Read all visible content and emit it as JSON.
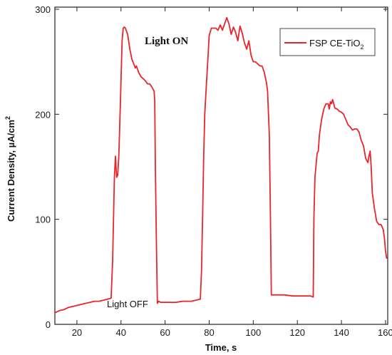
{
  "chart_data": {
    "type": "line",
    "xlabel": "Time, s",
    "ylabel": "Current Density, µA/cm",
    "ylabel_sup": "2",
    "xlim": [
      10,
      161
    ],
    "ylim": [
      0,
      302
    ],
    "x_ticks": [
      20,
      40,
      60,
      80,
      100,
      120,
      140,
      160
    ],
    "y_ticks": [
      0,
      100,
      200,
      300
    ],
    "x_tick_labels": [
      "20",
      "40",
      "60",
      "80",
      "100",
      "120",
      "140",
      "160"
    ],
    "y_tick_labels": [
      "0",
      "100",
      "200",
      "300"
    ],
    "grid": false,
    "legend": "top-right",
    "annotations": {
      "light_on": "Light ON",
      "light_off": "Light OFF"
    },
    "series": [
      {
        "name": "FSP CE-TiO",
        "name_sub": "2",
        "color": "#e8252a",
        "x": [
          10,
          12,
          14,
          16,
          18,
          20,
          22,
          24,
          26,
          28,
          30,
          32,
          34,
          35.5,
          36.2,
          37,
          37.5,
          38,
          38.5,
          39,
          39.7,
          40.5,
          41,
          41.5,
          42,
          43,
          44,
          45,
          45.8,
          46.5,
          47,
          48,
          49,
          50,
          51,
          52,
          53,
          54,
          55,
          55.3,
          55.6,
          56,
          56.5,
          56.8,
          57,
          58,
          60,
          62,
          65,
          68,
          72,
          76,
          76.5,
          77,
          77.5,
          78,
          78.5,
          79,
          79.5,
          80,
          81,
          82,
          83,
          84,
          85,
          86,
          87,
          88,
          89,
          90,
          91,
          92,
          93,
          94,
          95,
          96,
          97,
          98,
          99,
          100,
          101,
          102,
          103,
          104,
          105,
          106,
          106.5,
          107.3,
          107.8,
          108.2,
          110,
          114,
          118,
          122,
          126,
          127.2,
          127.5,
          128,
          129,
          129.5,
          130,
          131,
          132,
          133,
          134,
          134.5,
          135,
          135.5,
          136,
          137,
          138,
          139,
          140,
          141,
          142,
          143,
          144,
          145,
          146,
          147,
          148,
          149,
          150,
          151,
          152,
          152.5,
          153,
          153.5,
          154,
          155,
          156,
          157,
          158,
          159,
          159.5,
          160,
          160.5
        ],
        "y": [
          11,
          13,
          14,
          16,
          17,
          18,
          19,
          20,
          21,
          22,
          22,
          23,
          24,
          25,
          60,
          140,
          160,
          140,
          142,
          160,
          210,
          270,
          282,
          283,
          282,
          276,
          262,
          252,
          248,
          244,
          246,
          240,
          236,
          234,
          232,
          229,
          229,
          226,
          222,
          213,
          150,
          85,
          20,
          21,
          22,
          21,
          21,
          21,
          21,
          22,
          22,
          24,
          50,
          100,
          160,
          200,
          220,
          238,
          255,
          275,
          282,
          282,
          282,
          280,
          285,
          280,
          286,
          292,
          286,
          276,
          283,
          278,
          270,
          284,
          277,
          268,
          262,
          270,
          256,
          250,
          250,
          248,
          246,
          246,
          240,
          230,
          222,
          180,
          100,
          28,
          28,
          28,
          27,
          27,
          27,
          26,
          100,
          140,
          163,
          165,
          180,
          195,
          205,
          210,
          210,
          205,
          212,
          210,
          214,
          206,
          205,
          203,
          202,
          200,
          195,
          190,
          188,
          185,
          186,
          186,
          183,
          175,
          170,
          158,
          154,
          160,
          165,
          150,
          125,
          110,
          98,
          95,
          95,
          90,
          82,
          70,
          63
        ]
      }
    ]
  }
}
